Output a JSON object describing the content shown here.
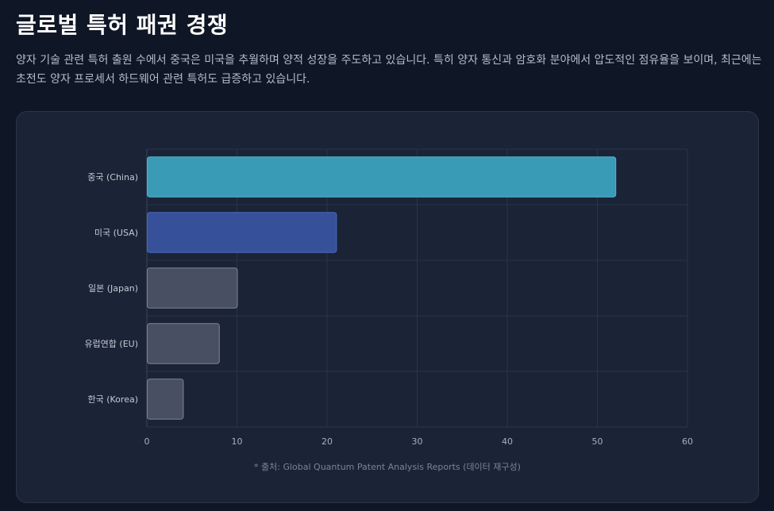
{
  "page": {
    "title": "글로벌 특허 패권 경쟁",
    "description": "양자 기술 관련 특허 출원 수에서 중국은 미국을 추월하며 양적 성장을 주도하고 있습니다. 특히 양자 통신과 암호화 분야에서 압도적인 점유율을 보이며, 최근에는 초전도 양자 프로세서 하드웨어 관련 특허도 급증하고 있습니다.",
    "source_note": "* 출처: Global Quantum Patent Analysis Reports (데이터 재구성)"
  },
  "chart_data": {
    "type": "bar",
    "orientation": "horizontal",
    "categories": [
      "중국 (China)",
      "미국 (USA)",
      "일본 (Japan)",
      "유럽연합 (EU)",
      "한국 (Korea)"
    ],
    "values": [
      52,
      21,
      10,
      8,
      4
    ],
    "xlim": [
      0,
      60
    ],
    "x_ticks": [
      0,
      10,
      20,
      30,
      40,
      50,
      60
    ],
    "grid": true,
    "legend": "none",
    "bar_colors": [
      "#3a9bb7",
      "#36509a",
      "#484f62",
      "#484f62",
      "#484f62"
    ],
    "bar_border_colors": [
      "#4fb6d2",
      "#4a69bf",
      "#7c8396",
      "#7c8396",
      "#7c8396"
    ]
  }
}
